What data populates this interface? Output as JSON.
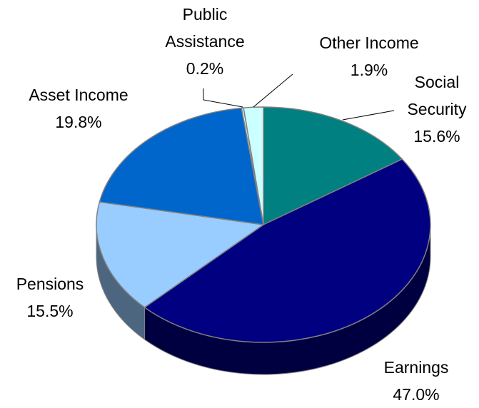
{
  "chart_data": {
    "type": "pie3d",
    "categories": [
      "Social Security",
      "Earnings",
      "Pensions",
      "Asset Income",
      "Public Assistance",
      "Other Income"
    ],
    "values": [
      15.6,
      47.0,
      15.5,
      19.8,
      0.2,
      1.9
    ],
    "value_labels": [
      "15.6%",
      "47.0%",
      "15.5%",
      "19.8%",
      "0.2%",
      "1.9%"
    ],
    "colors": [
      "#008080",
      "#000080",
      "#99ccff",
      "#0066cc",
      "#ccffff",
      "#ccffff"
    ]
  }
}
